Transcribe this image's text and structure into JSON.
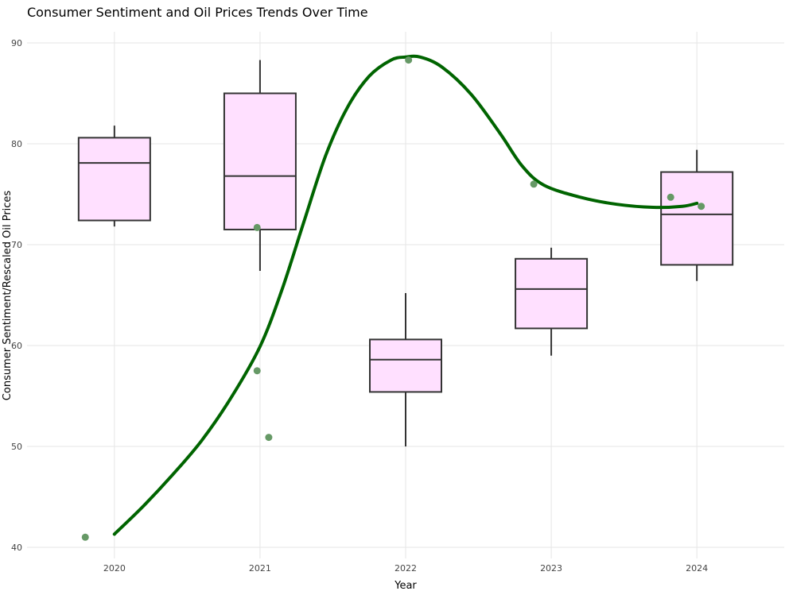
{
  "chart_data": {
    "type": "box",
    "title": "Consumer Sentiment and Oil Prices Trends Over Time",
    "xlabel": "Year",
    "ylabel": "Consumer Sentiment/Rescaled Oil Prices",
    "categories": [
      "2020",
      "2021",
      "2022",
      "2023",
      "2024"
    ],
    "ylim": [
      39,
      92
    ],
    "yticks": [
      40,
      50,
      60,
      70,
      80,
      90
    ],
    "grid": true,
    "boxes": [
      {
        "category": "2020",
        "lower_whisker": 71.8,
        "q1": 72.4,
        "median": 78.1,
        "q3": 80.6,
        "upper_whisker": 81.8
      },
      {
        "category": "2021",
        "lower_whisker": 67.4,
        "q1": 71.5,
        "median": 76.8,
        "q3": 85.0,
        "upper_whisker": 88.3
      },
      {
        "category": "2022",
        "lower_whisker": 50.0,
        "q1": 55.4,
        "median": 58.6,
        "q3": 60.6,
        "upper_whisker": 65.2
      },
      {
        "category": "2023",
        "lower_whisker": 59.0,
        "q1": 61.7,
        "median": 65.6,
        "q3": 68.6,
        "upper_whisker": 69.7
      },
      {
        "category": "2024",
        "lower_whisker": 66.4,
        "q1": 68.0,
        "median": 73.0,
        "q3": 77.2,
        "upper_whisker": 79.4
      }
    ],
    "points": [
      {
        "x": 2019.8,
        "y": 41.0
      },
      {
        "x": 2020.98,
        "y": 71.7
      },
      {
        "x": 2020.98,
        "y": 57.5
      },
      {
        "x": 2021.06,
        "y": 50.9
      },
      {
        "x": 2022.02,
        "y": 88.3
      },
      {
        "x": 2022.88,
        "y": 76.0
      },
      {
        "x": 2023.82,
        "y": 74.7
      },
      {
        "x": 2024.03,
        "y": 73.8
      }
    ],
    "trend": {
      "color": "#006400",
      "x": [
        2020.0,
        2020.2,
        2020.4,
        2020.6,
        2020.8,
        2021.0,
        2021.15,
        2021.3,
        2021.45,
        2021.6,
        2021.75,
        2021.9,
        2022.0,
        2022.1,
        2022.25,
        2022.45,
        2022.65,
        2022.8,
        2022.95,
        2023.2,
        2023.45,
        2023.7,
        2023.9,
        2024.0
      ],
      "y": [
        41.3,
        44.1,
        47.2,
        50.6,
        54.8,
        59.9,
        65.5,
        72.2,
        78.8,
        83.6,
        86.7,
        88.3,
        88.6,
        88.6,
        87.6,
        84.9,
        81.0,
        77.8,
        75.9,
        74.7,
        74.0,
        73.7,
        73.8,
        74.1
      ]
    },
    "colors": {
      "box_fill": "#ffe0ff",
      "box_stroke": "#333333",
      "points": "#669966",
      "trend": "#006400",
      "grid": "#e6e6e6"
    }
  }
}
